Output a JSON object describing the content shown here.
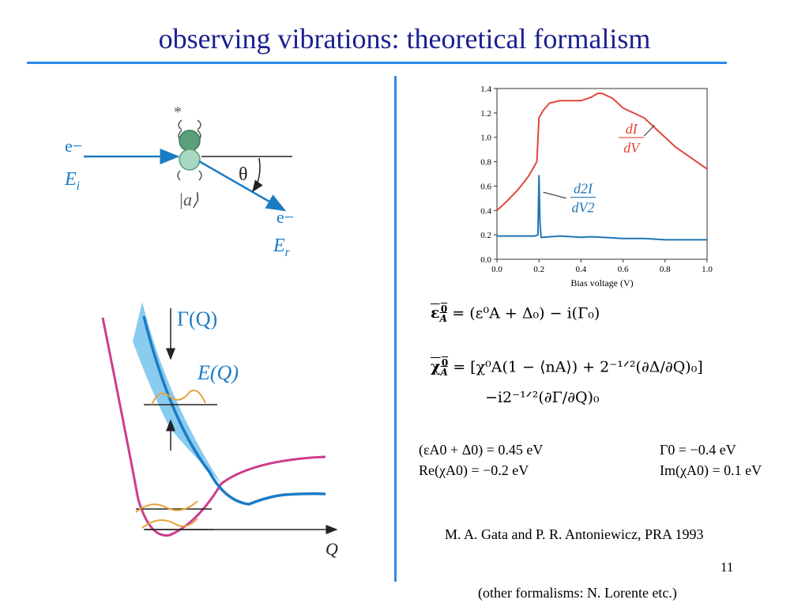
{
  "slide": {
    "title": "observing vibrations: theoretical formalism",
    "page_number": "11",
    "citation": "M. A. Gata and P. R. Antoniewicz, PRA 1993",
    "note": "(other formalisms: N. Lorente etc.)"
  },
  "scattering_diagram": {
    "incoming_electron": "e−",
    "incoming_energy": "E",
    "incoming_energy_sub": "i",
    "outgoing_electron": "e−",
    "outgoing_energy": "E",
    "outgoing_energy_sub": "r",
    "angle": "θ",
    "star": "*",
    "state_label": "|a⟩"
  },
  "potential_diagram": {
    "gamma_label": "Γ(Q)",
    "energy_label": "E(Q)",
    "axis_label": "Q"
  },
  "equations": {
    "eq1_lhs": "ε⁰A",
    "eq1": "ε₀A̅ = (ε⁰A + Δ₀) − i(Γ₀)",
    "eq1_rhs": "= (ε⁰A + Δ₀) − i(Γ₀)",
    "eq2_rhs_line1": "= [χ⁰A(1 − ⟨nA⟩) + 2⁻¹ᐟ²(∂Δ/∂Q)₀]",
    "eq2_line2": "−i2⁻¹ᐟ²(∂Γ/∂Q)₀"
  },
  "parameters": {
    "p1": "(εA0 + Δ0) = 0.45 eV",
    "p2": "Γ0 = −0.4 eV",
    "p3": "Re(χA0) = −0.2 eV",
    "p4": "Im(χA0) = 0.1 eV"
  },
  "chart_data": {
    "type": "line",
    "xlabel": "Bias voltage (V)",
    "ylabel": "",
    "xlim": [
      0.0,
      1.0
    ],
    "ylim": [
      0.0,
      1.4
    ],
    "x_ticks": [
      "0.0",
      "0.2",
      "0.4",
      "0.6",
      "0.8",
      "1.0"
    ],
    "y_ticks": [
      "0.0",
      "0.2",
      "0.4",
      "0.6",
      "0.8",
      "1.0",
      "1.2",
      "1.4"
    ],
    "grid": false,
    "annotations": [
      {
        "text_num": "dI",
        "text_den": "dV",
        "color": "#e0473a"
      },
      {
        "text_num": "d2I",
        "text_den": "dV2",
        "color": "#1f77b4"
      }
    ],
    "series": [
      {
        "color": "#e0473a",
        "x": [
          0.0,
          0.05,
          0.1,
          0.15,
          0.19,
          0.2,
          0.22,
          0.25,
          0.3,
          0.35,
          0.4,
          0.45,
          0.48,
          0.5,
          0.55,
          0.6,
          0.65,
          0.7,
          0.75,
          0.8,
          0.85,
          0.9,
          0.95,
          1.0
        ],
        "y": [
          0.4,
          0.48,
          0.57,
          0.68,
          0.8,
          1.16,
          1.22,
          1.28,
          1.3,
          1.3,
          1.3,
          1.33,
          1.36,
          1.36,
          1.32,
          1.24,
          1.2,
          1.16,
          1.08,
          1.0,
          0.92,
          0.86,
          0.8,
          0.74
        ]
      },
      {
        "color": "#1f77b4",
        "x": [
          0.0,
          0.1,
          0.18,
          0.195,
          0.2,
          0.205,
          0.21,
          0.22,
          0.3,
          0.4,
          0.45,
          0.5,
          0.6,
          0.7,
          0.8,
          0.9,
          1.0
        ],
        "y": [
          0.19,
          0.19,
          0.19,
          0.2,
          0.69,
          0.3,
          0.18,
          0.18,
          0.19,
          0.18,
          0.185,
          0.18,
          0.17,
          0.17,
          0.16,
          0.16,
          0.16
        ]
      }
    ]
  }
}
